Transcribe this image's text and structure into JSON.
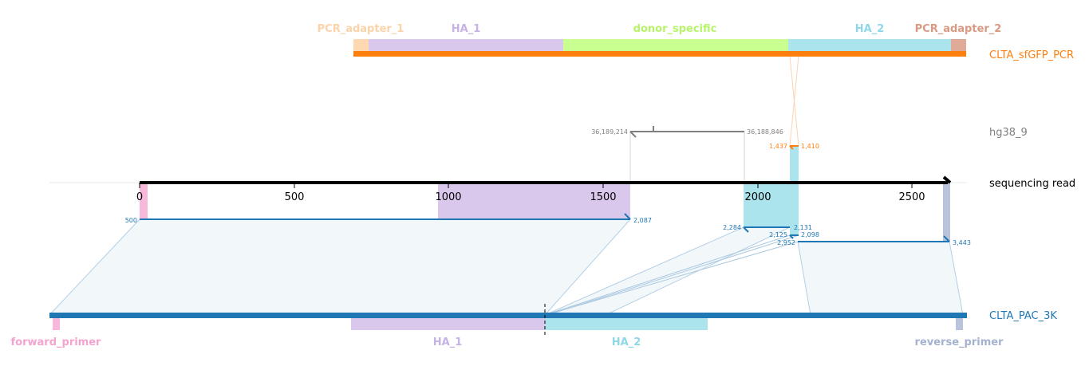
{
  "tracks": {
    "pcr": {
      "label": "CLTA_sfGFP_PCR",
      "color": "#ff7f0e"
    },
    "genome": {
      "label": "hg38_9",
      "color": "#808080"
    },
    "read": {
      "label": "sequencing read",
      "color": "#000000"
    },
    "pac": {
      "label": "CLTA_PAC_3K",
      "color": "#1f77b4"
    }
  },
  "pcr_features": [
    {
      "name": "PCR_adapter_1",
      "color": "#fdd8b0",
      "text_color": "#fbd3a8"
    },
    {
      "name": "HA_1",
      "color": "#d9c8eb",
      "text_color": "#c7b2e4"
    },
    {
      "name": "donor_specific",
      "color": "#c8ff90",
      "text_color": "#b7f46b"
    },
    {
      "name": "HA_2",
      "color": "#ace4ee",
      "text_color": "#8ed8e7"
    },
    {
      "name": "PCR_adapter_2",
      "color": "#e0aa98",
      "text_color": "#d99a84"
    }
  ],
  "pac_features": [
    {
      "name": "forward_primer",
      "color": "#f8b8dc",
      "text_color": "#f4a3cf"
    },
    {
      "name": "HA_1",
      "color": "#d9c8eb",
      "text_color": "#c7b2e4"
    },
    {
      "name": "HA_2",
      "color": "#ace4ee",
      "text_color": "#8ed8e7"
    },
    {
      "name": "reverse_primer",
      "color": "#b9c4dc",
      "text_color": "#a4b2cf"
    }
  ],
  "read_axis": {
    "ticks": [
      "0",
      "500",
      "1000",
      "1500",
      "2000",
      "2500"
    ]
  },
  "alignment_labels": {
    "genome_left": "36,189,214",
    "genome_right": "36,188,846",
    "pcr_left": "1,437",
    "pcr_right": "1,410",
    "pac1_left": "500",
    "pac1_right": "2,087",
    "pac2_left": "2,284",
    "pac2_right": "2,131",
    "pac3_left": "2,125",
    "pac3_right": "2,098",
    "pac4_left": "2,952",
    "pac4_right": "3,443"
  }
}
